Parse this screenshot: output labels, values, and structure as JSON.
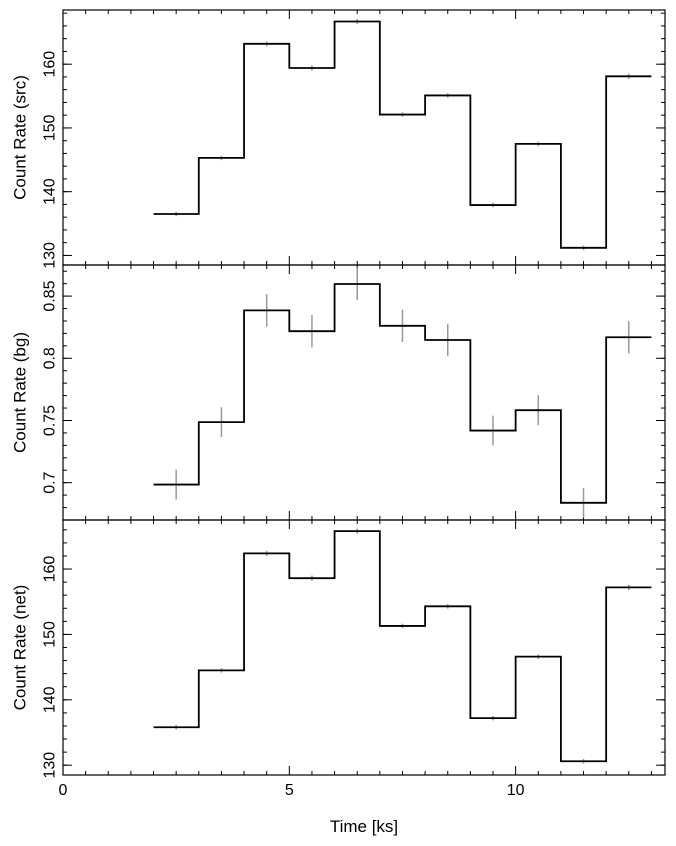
{
  "chart_data": {
    "type": "line",
    "xlabel": "Time [ks]",
    "xlim": [
      0,
      13.3
    ],
    "x_ticks": [
      0,
      5,
      10
    ],
    "bin_edges": [
      2,
      3,
      4,
      5,
      6,
      7,
      8,
      9,
      10,
      11,
      12,
      13
    ],
    "bin_centers": [
      2.5,
      3.5,
      4.5,
      5.5,
      6.5,
      7.5,
      8.5,
      9.5,
      10.5,
      11.5,
      12.5
    ],
    "panels": [
      {
        "ylabel": "Count Rate (src)",
        "ylim": [
          128.5,
          168.5
        ],
        "y_ticks": [
          130,
          140,
          150,
          160
        ],
        "y_tick_labels": [
          "130",
          "140",
          "150",
          "160"
        ],
        "values": [
          136.5,
          145.3,
          163.2,
          159.4,
          166.7,
          152.1,
          155.1,
          137.9,
          147.5,
          131.2,
          158.1
        ],
        "errors": [
          0.35,
          0.35,
          0.4,
          0.4,
          0.4,
          0.35,
          0.35,
          0.35,
          0.35,
          0.35,
          0.4
        ]
      },
      {
        "ylabel": "Count Rate (bg)",
        "ylim": [
          0.67,
          0.875
        ],
        "y_ticks": [
          0.7,
          0.75,
          0.8,
          0.85
        ],
        "y_tick_labels": [
          "0.7",
          "0.75",
          "0.8",
          "0.85"
        ],
        "values": [
          0.6985,
          0.7487,
          0.8385,
          0.8218,
          0.8597,
          0.8261,
          0.8147,
          0.7419,
          0.7583,
          0.6838,
          0.8169
        ],
        "errors": [
          0.012,
          0.012,
          0.013,
          0.013,
          0.013,
          0.013,
          0.013,
          0.012,
          0.012,
          0.012,
          0.013
        ]
      },
      {
        "ylabel": "Count Rate (net)",
        "ylim": [
          128.5,
          167.5
        ],
        "y_ticks": [
          130,
          140,
          150,
          160
        ],
        "y_tick_labels": [
          "130",
          "140",
          "150",
          "160"
        ],
        "values": [
          135.8,
          144.5,
          162.4,
          158.6,
          165.8,
          151.3,
          154.3,
          137.2,
          146.6,
          130.6,
          157.2
        ],
        "errors": [
          0.35,
          0.35,
          0.4,
          0.4,
          0.4,
          0.35,
          0.35,
          0.35,
          0.35,
          0.35,
          0.4
        ]
      }
    ],
    "colors": {
      "line": "#000000",
      "error_bar": "#999999"
    }
  }
}
